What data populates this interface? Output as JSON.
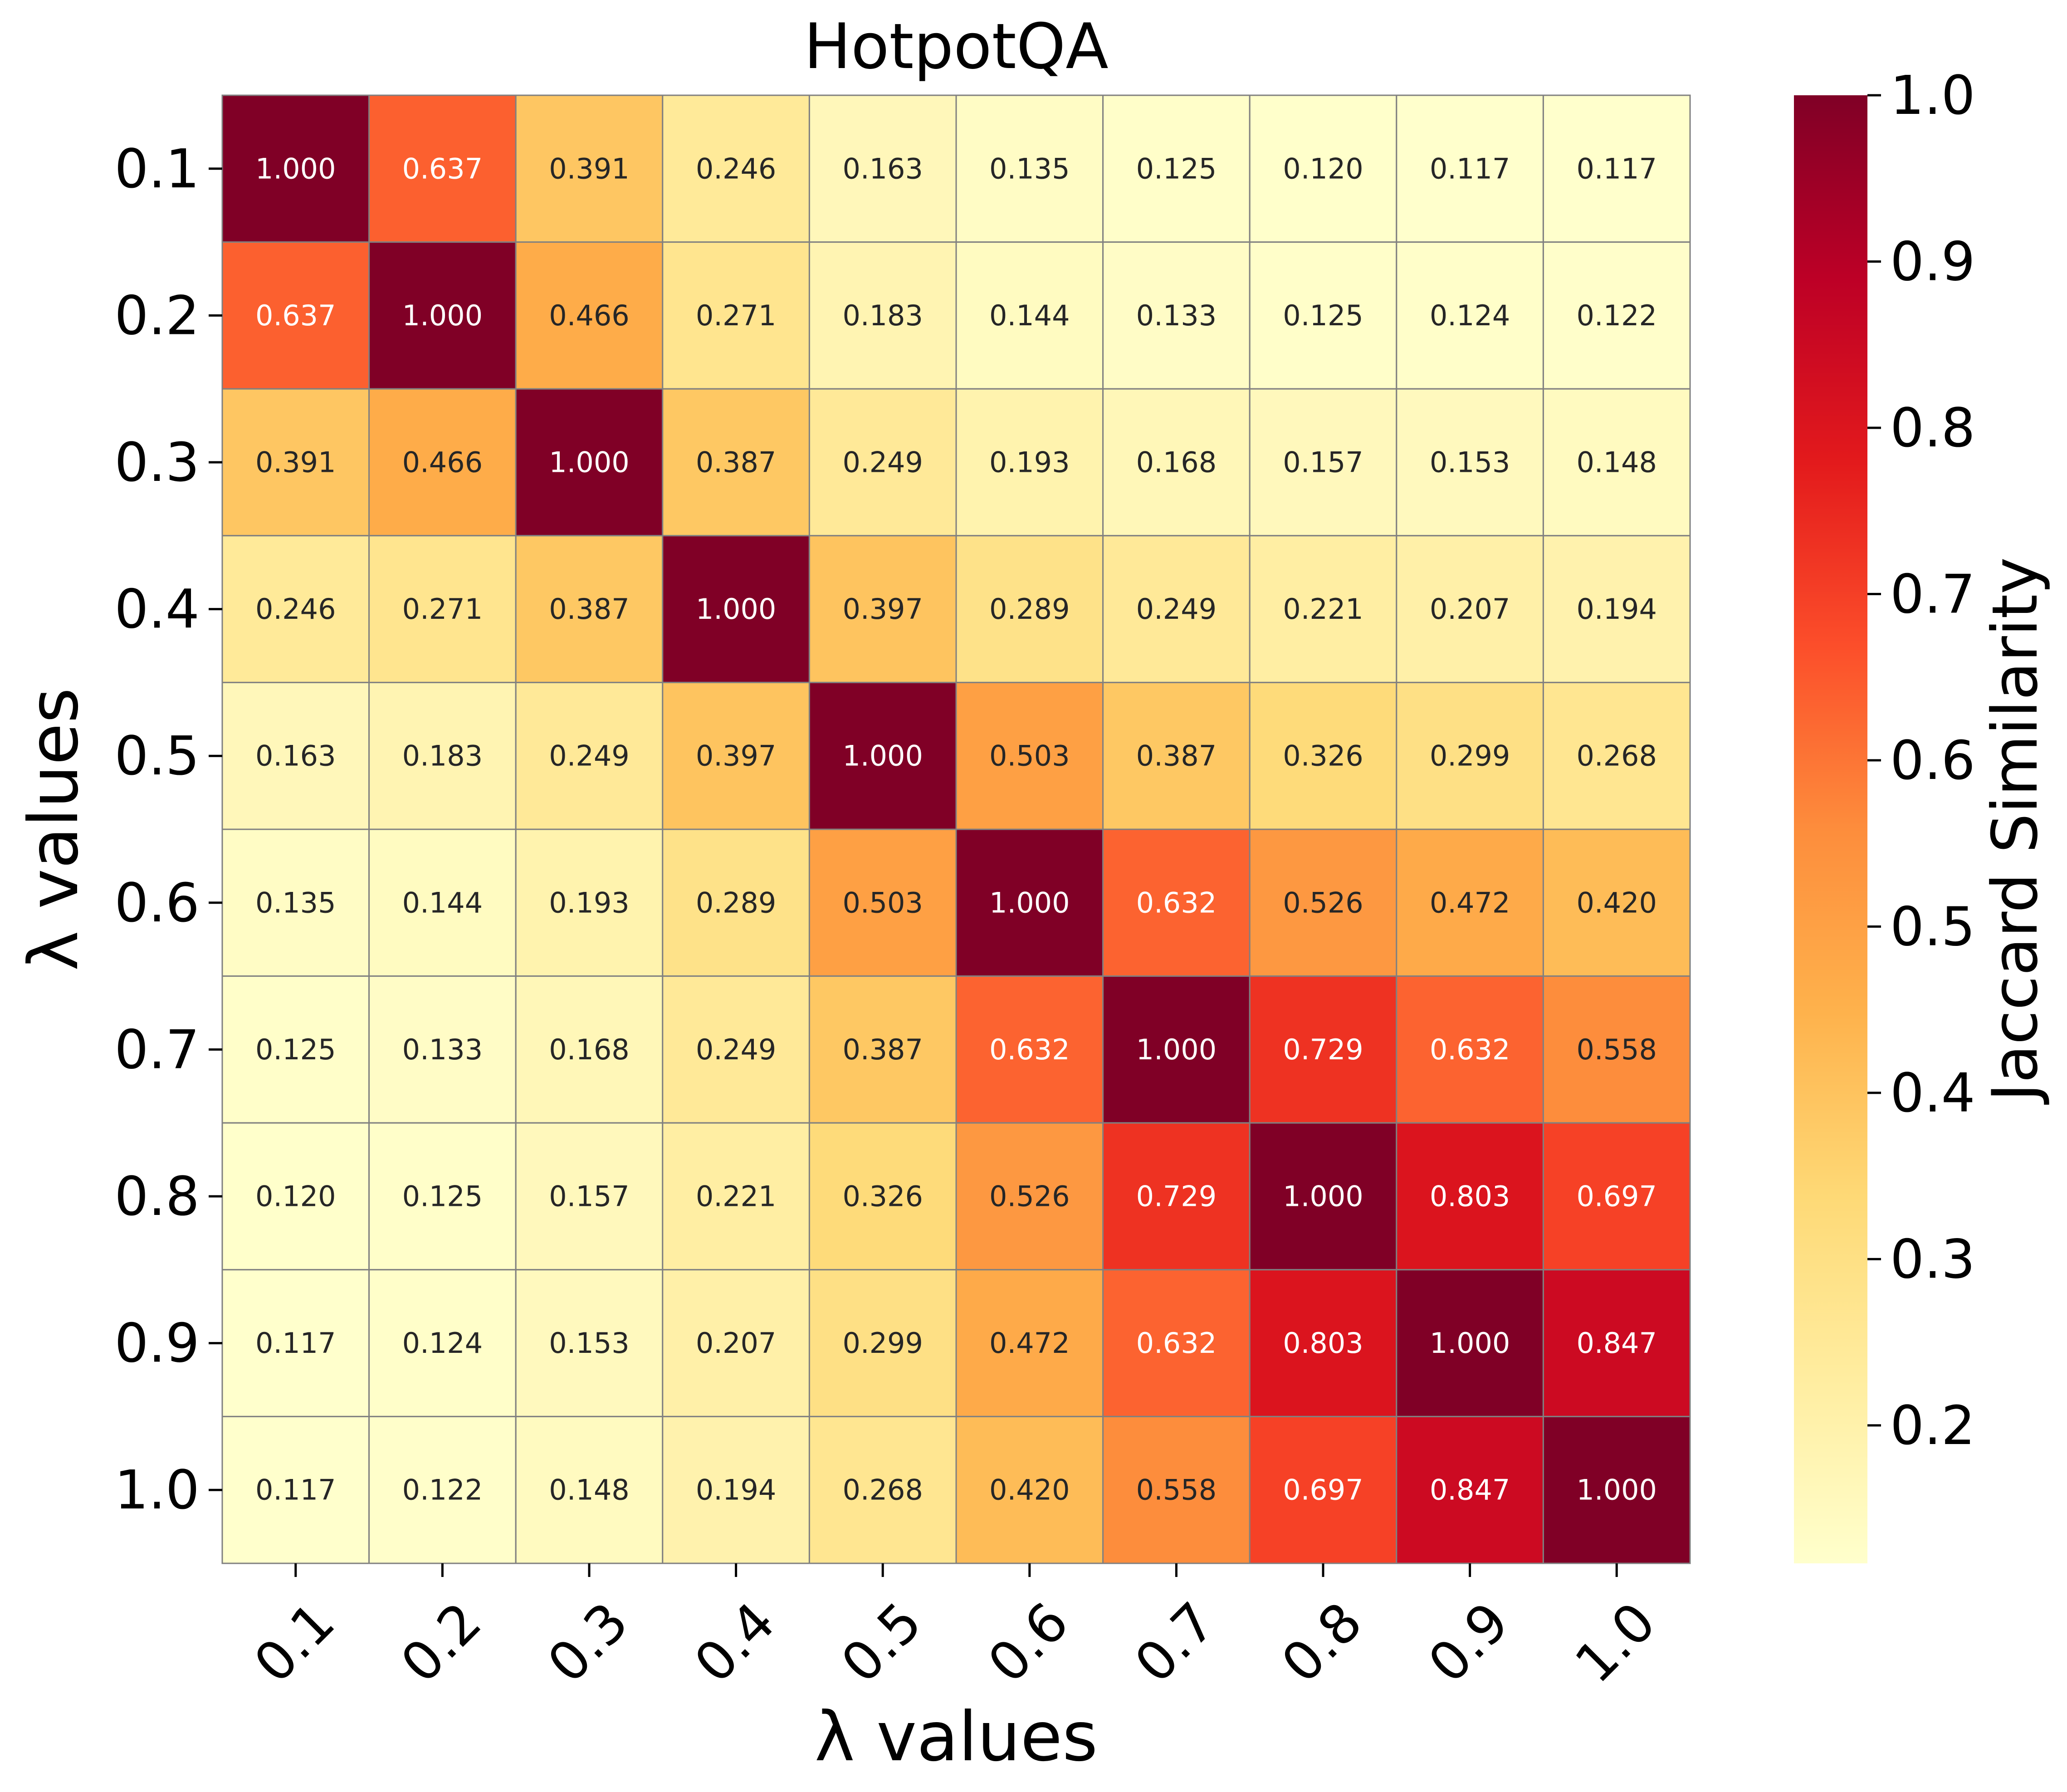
{
  "chart_data": {
    "type": "heatmap",
    "title": "HotpotQA",
    "xlabel": "λ values",
    "ylabel": "λ values",
    "colorbar_label": "Jaccard Similarity",
    "x_labels": [
      "0.1",
      "0.2",
      "0.3",
      "0.4",
      "0.5",
      "0.6",
      "0.7",
      "0.8",
      "0.9",
      "1.0"
    ],
    "y_labels": [
      "0.1",
      "0.2",
      "0.3",
      "0.4",
      "0.5",
      "0.6",
      "0.7",
      "0.8",
      "0.9",
      "1.0"
    ],
    "colorbar_ticks": [
      "0.2",
      "0.3",
      "0.4",
      "0.5",
      "0.6",
      "0.7",
      "0.8",
      "0.9",
      "1.0"
    ],
    "value_range": [
      0.117,
      1.0
    ],
    "colormap": "YlOrRd",
    "values": [
      [
        1.0,
        0.637,
        0.391,
        0.246,
        0.163,
        0.135,
        0.125,
        0.12,
        0.117,
        0.117
      ],
      [
        0.637,
        1.0,
        0.466,
        0.271,
        0.183,
        0.144,
        0.133,
        0.125,
        0.124,
        0.122
      ],
      [
        0.391,
        0.466,
        1.0,
        0.387,
        0.249,
        0.193,
        0.168,
        0.157,
        0.153,
        0.148
      ],
      [
        0.246,
        0.271,
        0.387,
        1.0,
        0.397,
        0.289,
        0.249,
        0.221,
        0.207,
        0.194
      ],
      [
        0.163,
        0.183,
        0.249,
        0.397,
        1.0,
        0.503,
        0.387,
        0.326,
        0.299,
        0.268
      ],
      [
        0.135,
        0.144,
        0.193,
        0.289,
        0.503,
        1.0,
        0.632,
        0.526,
        0.472,
        0.42
      ],
      [
        0.125,
        0.133,
        0.168,
        0.249,
        0.387,
        0.632,
        1.0,
        0.729,
        0.632,
        0.558
      ],
      [
        0.12,
        0.125,
        0.157,
        0.221,
        0.326,
        0.526,
        0.729,
        1.0,
        0.803,
        0.697
      ],
      [
        0.117,
        0.124,
        0.153,
        0.207,
        0.299,
        0.472,
        0.632,
        0.803,
        1.0,
        0.847
      ],
      [
        0.117,
        0.122,
        0.148,
        0.194,
        0.268,
        0.42,
        0.558,
        0.697,
        0.847,
        1.0
      ]
    ],
    "cell_labels": [
      [
        "1.000",
        "0.637",
        "0.391",
        "0.246",
        "0.163",
        "0.135",
        "0.125",
        "0.120",
        "0.117",
        "0.117"
      ],
      [
        "0.637",
        "1.000",
        "0.466",
        "0.271",
        "0.183",
        "0.144",
        "0.133",
        "0.125",
        "0.124",
        "0.122"
      ],
      [
        "0.391",
        "0.466",
        "1.000",
        "0.387",
        "0.249",
        "0.193",
        "0.168",
        "0.157",
        "0.153",
        "0.148"
      ],
      [
        "0.246",
        "0.271",
        "0.387",
        "1.000",
        "0.397",
        "0.289",
        "0.249",
        "0.221",
        "0.207",
        "0.194"
      ],
      [
        "0.163",
        "0.183",
        "0.249",
        "0.397",
        "1.000",
        "0.503",
        "0.387",
        "0.326",
        "0.299",
        "0.268"
      ],
      [
        "0.135",
        "0.144",
        "0.193",
        "0.289",
        "0.503",
        "1.000",
        "0.632",
        "0.526",
        "0.472",
        "0.420"
      ],
      [
        "0.125",
        "0.133",
        "0.168",
        "0.249",
        "0.387",
        "0.632",
        "1.000",
        "0.729",
        "0.632",
        "0.558"
      ],
      [
        "0.120",
        "0.125",
        "0.157",
        "0.221",
        "0.326",
        "0.526",
        "0.729",
        "1.000",
        "0.803",
        "0.697"
      ],
      [
        "0.117",
        "0.124",
        "0.153",
        "0.207",
        "0.299",
        "0.472",
        "0.632",
        "0.803",
        "1.000",
        "0.847"
      ],
      [
        "0.117",
        "0.122",
        "0.148",
        "0.194",
        "0.268",
        "0.420",
        "0.558",
        "0.697",
        "0.847",
        "1.000"
      ]
    ]
  }
}
